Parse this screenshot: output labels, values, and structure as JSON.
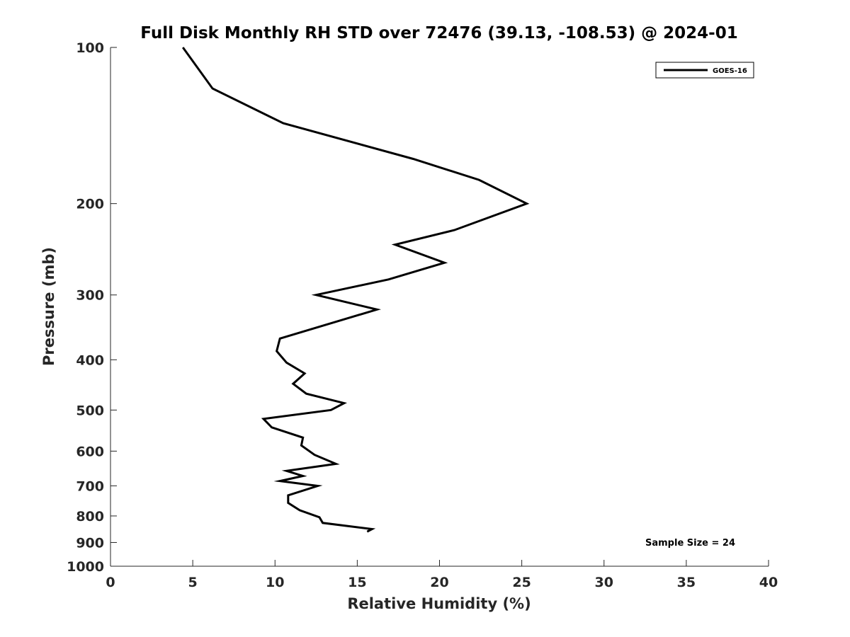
{
  "chart_data": {
    "type": "line",
    "title": "Full Disk Monthly RH STD over 72476 (39.13, -108.53) @ 2024-01",
    "xlabel": "Relative Humidity (%)",
    "ylabel": "Pressure (mb)",
    "xlim": [
      0,
      40
    ],
    "ylim": [
      100,
      1000
    ],
    "y_scale": "log",
    "y_reversed": true,
    "x_ticks": [
      "0",
      "5",
      "10",
      "15",
      "20",
      "25",
      "30",
      "35",
      "40"
    ],
    "y_ticks": [
      "100",
      "200",
      "300",
      "400",
      "500",
      "600",
      "700",
      "800",
      "900",
      "1000"
    ],
    "grid": false,
    "legend_position": "top-right",
    "series": [
      {
        "name": "GOES-16",
        "color": "#000000",
        "points": [
          {
            "x": 4.4,
            "y": 100
          },
          {
            "x": 6.2,
            "y": 120
          },
          {
            "x": 10.5,
            "y": 140
          },
          {
            "x": 18.4,
            "y": 164
          },
          {
            "x": 22.4,
            "y": 180
          },
          {
            "x": 25.3,
            "y": 200
          },
          {
            "x": 20.9,
            "y": 225
          },
          {
            "x": 17.3,
            "y": 240
          },
          {
            "x": 20.3,
            "y": 260
          },
          {
            "x": 16.9,
            "y": 280
          },
          {
            "x": 12.5,
            "y": 300
          },
          {
            "x": 16.2,
            "y": 320
          },
          {
            "x": 10.3,
            "y": 364
          },
          {
            "x": 10.1,
            "y": 385
          },
          {
            "x": 10.7,
            "y": 405
          },
          {
            "x": 11.8,
            "y": 425
          },
          {
            "x": 11.1,
            "y": 445
          },
          {
            "x": 11.9,
            "y": 465
          },
          {
            "x": 14.2,
            "y": 485
          },
          {
            "x": 13.4,
            "y": 500
          },
          {
            "x": 9.3,
            "y": 520
          },
          {
            "x": 9.8,
            "y": 540
          },
          {
            "x": 11.7,
            "y": 565
          },
          {
            "x": 11.6,
            "y": 585
          },
          {
            "x": 12.4,
            "y": 610
          },
          {
            "x": 13.7,
            "y": 635
          },
          {
            "x": 10.7,
            "y": 655
          },
          {
            "x": 11.7,
            "y": 670
          },
          {
            "x": 10.3,
            "y": 685
          },
          {
            "x": 12.6,
            "y": 700
          },
          {
            "x": 10.8,
            "y": 730
          },
          {
            "x": 10.8,
            "y": 755
          },
          {
            "x": 11.5,
            "y": 780
          },
          {
            "x": 12.7,
            "y": 805
          },
          {
            "x": 12.9,
            "y": 825
          },
          {
            "x": 15.9,
            "y": 848
          },
          {
            "x": 15.6,
            "y": 858
          }
        ]
      }
    ],
    "annotations": [
      "Sample Size = 24"
    ]
  }
}
